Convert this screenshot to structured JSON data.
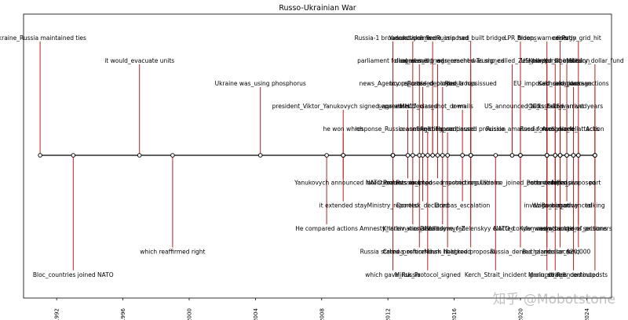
{
  "chart_data": {
    "type": "timeline",
    "title": "Russo-Ukrainian War",
    "xlim": [
      1990.0,
      2025.5
    ],
    "ylim": [
      -6.2,
      6.2
    ],
    "ticks": [
      1992,
      1996,
      2000,
      2004,
      2008,
      2012,
      2016,
      2020,
      2024
    ],
    "colors": {
      "stem": "#b22222",
      "axis": "#000000",
      "marker_face": "#ffffff"
    },
    "events": [
      {
        "x": 1991.0,
        "level": 5,
        "label": "Ukraine_Russia maintained ties"
      },
      {
        "x": 1993.0,
        "level": -5,
        "label": "Bloc_countries joined NATO"
      },
      {
        "x": 1997.0,
        "level": 4,
        "label": "it would_evacuate units"
      },
      {
        "x": 1999.0,
        "level": -4,
        "label": "which reaffirmed right"
      },
      {
        "x": 2004.3,
        "level": 3,
        "label": "Ukraine was_using phosphorus"
      },
      {
        "x": 2008.3,
        "level": -3,
        "label": "He compared actions"
      },
      {
        "x": 2009.3,
        "level": 2,
        "label": "president_Viktor_Yanukovych signed_agreement"
      },
      {
        "x": 2009.3,
        "level": 1,
        "label": "he won which"
      },
      {
        "x": 2009.3,
        "level": -1,
        "label": "Yanukovych announced intention"
      },
      {
        "x": 2009.3,
        "level": -2,
        "label": "it extended stay"
      },
      {
        "x": 2012.3,
        "level": 5,
        "label": "Russia-1 broadcast claims"
      },
      {
        "x": 2012.3,
        "level": 4,
        "label": "parliament followed suit"
      },
      {
        "x": 2012.3,
        "level": 3,
        "label": "news_Agency reported"
      },
      {
        "x": 2012.3,
        "level": 1,
        "label": "response_Russia annexed"
      },
      {
        "x": 2012.3,
        "level": -1,
        "label": "NATO_leaders met"
      },
      {
        "x": 2012.3,
        "level": -2,
        "label": "Ministry_reported"
      },
      {
        "x": 2012.3,
        "level": -3,
        "label": "Amnesty_International"
      },
      {
        "x": 2012.3,
        "level": -4,
        "label": "Russia stated_position"
      },
      {
        "x": 2012.3,
        "level": -5,
        "label": "which gave_Russia"
      },
      {
        "x": 2013.2,
        "level": 2,
        "label": "separatists declared"
      },
      {
        "x": 2013.2,
        "level": -1,
        "label": "Protests erupted"
      },
      {
        "x": 2013.5,
        "level": 5,
        "label": "Yanukovych fled"
      },
      {
        "x": 2013.5,
        "level": -3,
        "label": "Kharkiv_was_shelled"
      },
      {
        "x": 2013.9,
        "level": 4,
        "label": "deal_was_signed"
      },
      {
        "x": 2013.9,
        "level": -4,
        "label": "Crimea_referendum held"
      },
      {
        "x": 2014.1,
        "level": 3,
        "label": "troops_crossed_border"
      },
      {
        "x": 2014.1,
        "level": -2,
        "label": "Donetsk_declared"
      },
      {
        "x": 2014.4,
        "level": 1,
        "label": "ceasefire_collapsed"
      },
      {
        "x": 2014.4,
        "level": -5,
        "label": "Minsk_Protocol_signed"
      },
      {
        "x": 2014.7,
        "level": 5,
        "label": "sanctions_were_imposed"
      },
      {
        "x": 2014.7,
        "level": 2,
        "label": "MH17_was_shot_down"
      },
      {
        "x": 2015.0,
        "level": -1,
        "label": "Russia_imposed_restrictions"
      },
      {
        "x": 2015.0,
        "level": 4,
        "label": "agreement_was_reached"
      },
      {
        "x": 2015.3,
        "level": -3,
        "label": "Debaltseve_fell"
      },
      {
        "x": 2015.3,
        "level": 3,
        "label": "Russia_deployed_troops"
      },
      {
        "x": 2015.6,
        "level": -4,
        "label": "Minsk_II_agreed"
      },
      {
        "x": 2015.6,
        "level": 1,
        "label": "fighting_continued"
      },
      {
        "x": 2016.5,
        "level": 2,
        "label": "e-mails"
      },
      {
        "x": 2016.5,
        "level": -2,
        "label": "Donbas_escalation"
      },
      {
        "x": 2017.0,
        "level": 5,
        "label": "Russia had_built bridge"
      },
      {
        "x": 2017.0,
        "level": 4,
        "label": "agreement was signed"
      },
      {
        "x": 2017.0,
        "level": 3,
        "label": "Russia has issued"
      },
      {
        "x": 2017.0,
        "level": 1,
        "label": "House passed provision"
      },
      {
        "x": 2017.0,
        "level": -1,
        "label": "imposed regulations"
      },
      {
        "x": 2017.0,
        "level": -3,
        "label": "Volodymyr_Zelenskyy elected"
      },
      {
        "x": 2017.0,
        "level": -4,
        "label": "backed proposal"
      },
      {
        "x": 2018.5,
        "level": -5,
        "label": "Kerch_Strait_incident"
      },
      {
        "x": 2019.5,
        "level": 4,
        "label": "Trump_called_Zelenskyy"
      },
      {
        "x": 2019.5,
        "level": 2,
        "label": "US_announced_aid"
      },
      {
        "x": 2020.0,
        "level": 5,
        "label": "LPR_troops"
      },
      {
        "x": 2020.0,
        "level": 1,
        "label": "Russia_amassed_forces"
      },
      {
        "x": 2020.0,
        "level": -1,
        "label": "Ukraine_joined_partnership"
      },
      {
        "x": 2020.0,
        "level": -3,
        "label": "NATO_condemned"
      },
      {
        "x": 2020.0,
        "level": -4,
        "label": "Russia_denied_plans"
      },
      {
        "x": 2021.6,
        "level": 5,
        "label": "Biden_warned_Putin"
      },
      {
        "x": 2021.6,
        "level": 4,
        "label": "US_placed_troops"
      },
      {
        "x": 2021.6,
        "level": 3,
        "label": "EU_imposed_sanctions"
      },
      {
        "x": 2021.6,
        "level": 2,
        "label": "talks_failed"
      },
      {
        "x": 2021.6,
        "level": 1,
        "label": "Russia_recognized"
      },
      {
        "x": 2021.6,
        "level": -1,
        "label": "Putin_ordered"
      },
      {
        "x": 2021.6,
        "level": -2,
        "label": "invasion_began"
      },
      {
        "x": 2021.6,
        "level": -3,
        "label": "Kyiv_was_attacked"
      },
      {
        "x": 2021.6,
        "level": -4,
        "label": "Bucha_massacre"
      },
      {
        "x": 2021.6,
        "level": -5,
        "label": "Mariupol_fell"
      },
      {
        "x": 2022.1,
        "level": 4,
        "label": "Kherson_liberated"
      },
      {
        "x": 2022.1,
        "level": 2,
        "label": "ICC_issued_warrant"
      },
      {
        "x": 2022.1,
        "level": -1,
        "label": "counteroffensive"
      },
      {
        "x": 2022.1,
        "level": -2,
        "label": "Wagner_mutiny"
      },
      {
        "x": 2022.1,
        "level": -5,
        "label": "grain_deal_ended"
      },
      {
        "x": 2022.4,
        "level": 5,
        "label": "crisis"
      },
      {
        "x": 2022.4,
        "level": 3,
        "label": "Kakhovka_dam"
      },
      {
        "x": 2022.4,
        "level": 1,
        "label": "Avdiivka_fell"
      },
      {
        "x": 2022.4,
        "level": -3,
        "label": "new_sanctions"
      },
      {
        "x": 2022.4,
        "level": -4,
        "label": "a_dollar_fund"
      },
      {
        "x": 2022.8,
        "level": 4,
        "label": "Kursk_incursion"
      },
      {
        "x": 2022.8,
        "level": 2,
        "label": "F-16s_arrived"
      },
      {
        "x": 2022.8,
        "level": -2,
        "label": "Russia_advanced"
      },
      {
        "x": 2023.2,
        "level": 3,
        "label": "aid_package"
      },
      {
        "x": 2023.2,
        "level": -1,
        "label": "talks_proposed"
      },
      {
        "x": 2023.2,
        "level": -5,
        "label": "strikes_continued"
      },
      {
        "x": 2023.5,
        "level": 5,
        "label": "energy_grid_hit"
      },
      {
        "x": 2023.5,
        "level": 1,
        "label": "drone_attacks"
      },
      {
        "x": 2023.5,
        "level": -3,
        "label": "exchange_of_prisoners"
      },
      {
        "x": 2023.5,
        "level": -4,
        "label": "$20,000"
      },
      {
        "x": 2024.5,
        "level": 4,
        "label": "Military_dollar_fund"
      },
      {
        "x": 2024.5,
        "level": 3,
        "label": "sanctions"
      },
      {
        "x": 2024.5,
        "level": 2,
        "label": "years"
      },
      {
        "x": 2024.5,
        "level": 1,
        "label": "Action"
      },
      {
        "x": 2024.5,
        "level": -1,
        "label": "part"
      },
      {
        "x": 2024.5,
        "level": -2,
        "label": "talking"
      },
      {
        "x": 2024.5,
        "level": -3,
        "label": "sections"
      },
      {
        "x": 2024.5,
        "level": -5,
        "label": "outposts"
      }
    ]
  },
  "watermark": "知乎 @Mobotstone"
}
